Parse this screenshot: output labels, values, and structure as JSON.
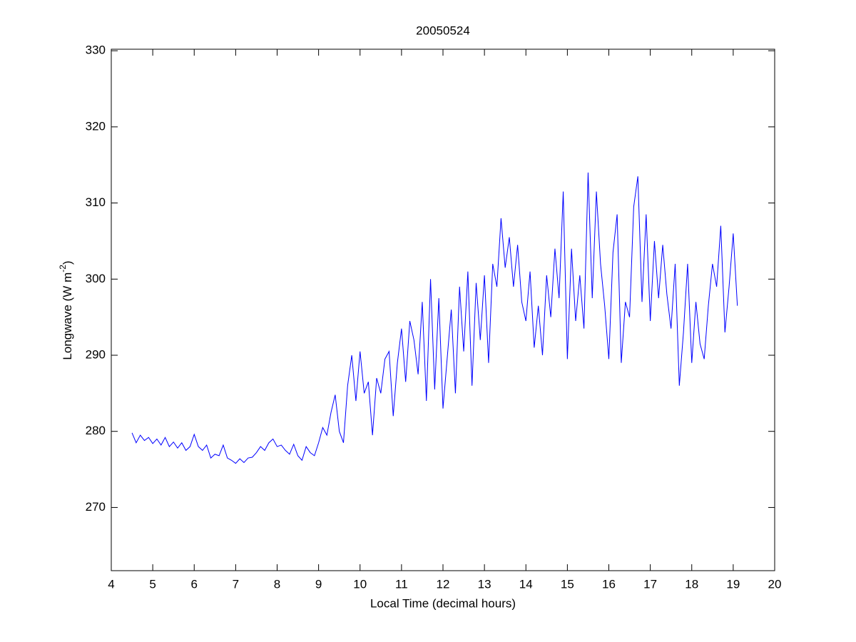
{
  "chart_data": {
    "type": "line",
    "title": "20050524",
    "xlabel": "Local Time (decimal hours)",
    "ylabel": {
      "text": "Longwave (W m",
      "superscript": "-2",
      "end": ")"
    },
    "xlim": [
      4,
      20
    ],
    "ylim": [
      261.7,
      330.2
    ],
    "xticks": [
      4,
      5,
      6,
      7,
      8,
      9,
      10,
      11,
      12,
      13,
      14,
      15,
      16,
      17,
      18,
      19,
      20
    ],
    "yticks": [
      270,
      280,
      290,
      300,
      310,
      320,
      330
    ],
    "grid": false,
    "x": [
      4.5,
      4.6,
      4.7,
      4.8,
      4.9,
      5.0,
      5.1,
      5.2,
      5.3,
      5.4,
      5.5,
      5.6,
      5.7,
      5.8,
      5.9,
      6.0,
      6.1,
      6.2,
      6.3,
      6.4,
      6.5,
      6.6,
      6.7,
      6.8,
      6.9,
      7.0,
      7.1,
      7.2,
      7.3,
      7.4,
      7.5,
      7.6,
      7.7,
      7.8,
      7.9,
      8.0,
      8.1,
      8.2,
      8.3,
      8.4,
      8.5,
      8.6,
      8.7,
      8.8,
      8.9,
      9.0,
      9.1,
      9.2,
      9.3,
      9.4,
      9.5,
      9.6,
      9.7,
      9.8,
      9.9,
      10.0,
      10.1,
      10.2,
      10.3,
      10.4,
      10.5,
      10.6,
      10.7,
      10.8,
      10.9,
      11.0,
      11.1,
      11.2,
      11.3,
      11.4,
      11.5,
      11.6,
      11.7,
      11.8,
      11.9,
      12.0,
      12.1,
      12.2,
      12.3,
      12.4,
      12.5,
      12.6,
      12.7,
      12.8,
      12.9,
      13.0,
      13.1,
      13.2,
      13.3,
      13.4,
      13.5,
      13.6,
      13.7,
      13.8,
      13.9,
      14.0,
      14.1,
      14.2,
      14.3,
      14.4,
      14.5,
      14.6,
      14.7,
      14.8,
      14.9,
      15.0,
      15.1,
      15.2,
      15.3,
      15.4,
      15.5,
      15.6,
      15.7,
      15.8,
      15.9,
      16.0,
      16.1,
      16.2,
      16.3,
      16.4,
      16.5,
      16.6,
      16.7,
      16.8,
      16.9,
      17.0,
      17.1,
      17.2,
      17.3,
      17.4,
      17.5,
      17.6,
      17.7,
      17.8,
      17.9,
      18.0,
      18.1,
      18.2,
      18.3,
      18.4,
      18.5,
      18.6,
      18.7,
      18.8,
      18.9,
      19.0,
      19.1
    ],
    "series": [
      {
        "color": "#0000ff",
        "values": [
          279.8,
          278.5,
          279.5,
          278.8,
          279.2,
          278.4,
          279.0,
          278.2,
          279.2,
          278.0,
          278.6,
          277.8,
          278.5,
          277.5,
          278.0,
          279.6,
          278.0,
          277.5,
          278.2,
          276.5,
          277.0,
          276.8,
          278.2,
          276.5,
          276.2,
          275.8,
          276.4,
          275.9,
          276.5,
          276.6,
          277.2,
          278.0,
          277.5,
          278.5,
          279.0,
          278.0,
          278.2,
          277.5,
          277.0,
          278.3,
          276.8,
          276.2,
          278.0,
          277.2,
          276.8,
          278.5,
          280.5,
          279.5,
          282.5,
          284.8,
          280.0,
          278.5,
          286.0,
          290.0,
          284.0,
          290.5,
          285.0,
          286.5,
          279.5,
          287.0,
          285.0,
          289.5,
          290.5,
          282.0,
          289.0,
          293.5,
          286.5,
          294.5,
          292.0,
          287.5,
          297.0,
          284.0,
          300.0,
          285.5,
          297.5,
          283.0,
          289.5,
          296.0,
          285.0,
          299.0,
          290.5,
          301.0,
          286.0,
          299.5,
          292.0,
          300.5,
          289.0,
          302.0,
          299.0,
          308.0,
          301.5,
          305.5,
          299.0,
          304.5,
          297.0,
          294.5,
          301.0,
          291.0,
          296.5,
          290.0,
          300.5,
          295.0,
          304.0,
          297.5,
          311.5,
          289.5,
          304.0,
          294.5,
          300.5,
          293.5,
          314.0,
          297.5,
          311.5,
          302.0,
          296.5,
          289.5,
          303.5,
          308.5,
          289.0,
          297.0,
          295.0,
          309.5,
          313.5,
          297.0,
          308.5,
          294.5,
          305.0,
          297.5,
          304.5,
          298.0,
          293.5,
          302.0,
          286.0,
          293.0,
          302.0,
          289.0,
          297.0,
          291.5,
          289.5,
          296.5,
          302.0,
          299.0,
          307.0,
          293.0,
          299.0,
          306.0,
          296.5
        ]
      }
    ]
  }
}
